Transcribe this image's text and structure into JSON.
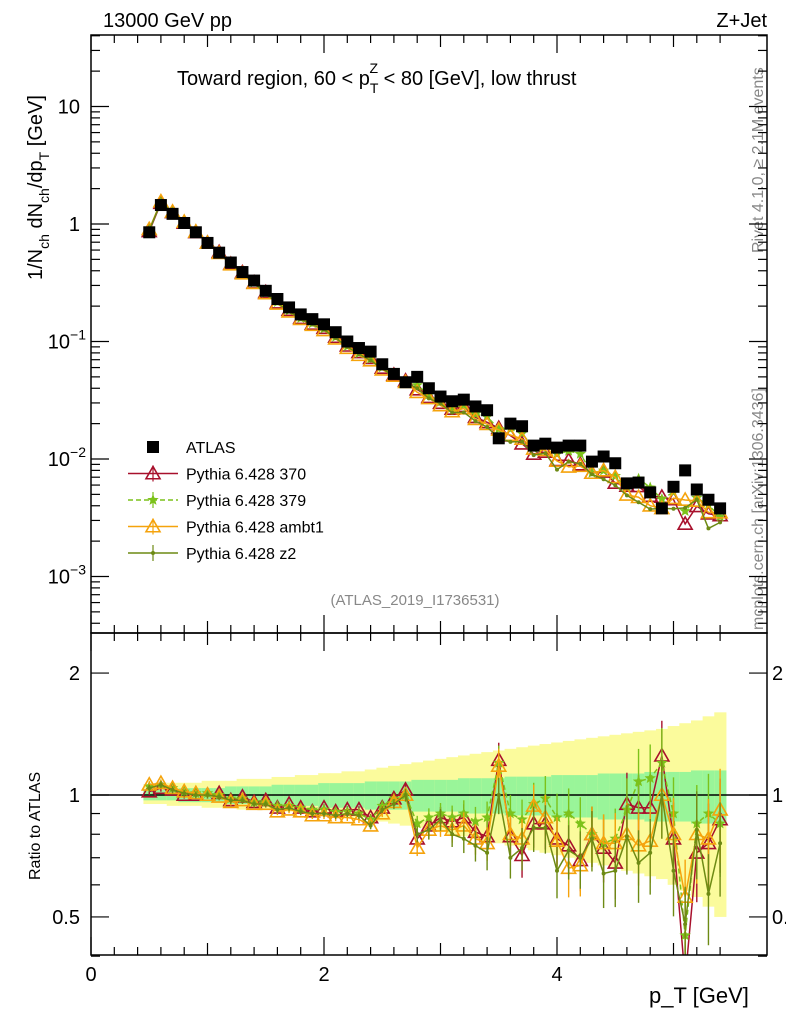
{
  "header": {
    "left": "13000 GeV pp",
    "right": "Z+Jet"
  },
  "side_texts": {
    "rivet": "Rivet 4.1.0, ≥ 2.1M events",
    "mcplots": "mcplots.cern.ch [arXiv:1306.3436]"
  },
  "watermark": "(ATLAS_2019_I1736531)",
  "chart_data": [
    {
      "type": "scatter",
      "panel": "main",
      "title": "Toward region, 60 < p_T^Z < 80 [GeV], low thrust",
      "title_parts": {
        "a": "Toward region, 60 < p",
        "sub": "T",
        "sup": "Z",
        "b": " < 80 [GeV], low thrust"
      },
      "ylabel": "1/N_ch dN_ch/dp_T [GeV]",
      "ylabel_parts": {
        "a": "1/N",
        "s1": "ch",
        "b": " dN",
        "s2": "ch",
        "c": "/dp",
        "s3": "T",
        "d": " [GeV]"
      },
      "yscale": "log",
      "ylim": [
        0.00034,
        40
      ],
      "xlim": [
        0,
        5.55
      ],
      "y_ticks": [
        {
          "v": 10,
          "base": "10",
          "exp": ""
        },
        {
          "v": 1,
          "base": "1",
          "exp": ""
        },
        {
          "v": 0.1,
          "base": "10",
          "exp": "−1"
        },
        {
          "v": 0.01,
          "base": "10",
          "exp": "−2"
        },
        {
          "v": 0.001,
          "base": "10",
          "exp": "−3"
        }
      ],
      "legend_position": "bottom-left",
      "x": [
        0.5,
        0.6,
        0.7,
        0.8,
        0.9,
        1.0,
        1.1,
        1.2,
        1.3,
        1.4,
        1.5,
        1.6,
        1.7,
        1.8,
        1.9,
        2.0,
        2.1,
        2.2,
        2.3,
        2.4,
        2.5,
        2.6,
        2.7,
        2.8,
        2.9,
        3.0,
        3.1,
        3.2,
        3.3,
        3.4,
        3.5,
        3.6,
        3.7,
        3.8,
        3.9,
        4.0,
        4.1,
        4.2,
        4.3,
        4.4,
        4.5,
        4.6,
        4.7,
        4.8,
        4.9,
        5.0,
        5.1,
        5.2,
        5.3,
        5.4
      ],
      "atlas": [
        0.85,
        1.45,
        1.22,
        1.02,
        0.85,
        0.69,
        0.57,
        0.47,
        0.39,
        0.33,
        0.27,
        0.23,
        0.195,
        0.17,
        0.155,
        0.14,
        0.12,
        0.1,
        0.088,
        0.082,
        0.064,
        0.053,
        0.045,
        0.05,
        0.04,
        0.034,
        0.031,
        0.032,
        0.028,
        0.026,
        0.015,
        0.02,
        0.019,
        0.013,
        0.0135,
        0.0125,
        0.013,
        0.013,
        0.0095,
        0.0105,
        0.0092,
        0.0062,
        0.0063,
        0.0052,
        0.0038,
        0.0058,
        0.008,
        0.0055,
        0.0045,
        0.0038
      ]
    },
    {
      "type": "line",
      "panel": "ratio",
      "ylabel": "Ratio to ATLAS",
      "xlabel_parts": {
        "a": "p",
        "sub": "T",
        "b": " [GeV]"
      },
      "xlabel": "p_T [GeV]",
      "yscale": "log",
      "ylim": [
        0.4,
        2.5
      ],
      "y_ticks": [
        {
          "v": 0.5,
          "label": "0.5"
        },
        {
          "v": 1,
          "label": "1"
        },
        {
          "v": 2,
          "label": "2"
        }
      ],
      "x_ticks": [
        {
          "v": 0,
          "label": "0"
        },
        {
          "v": 2,
          "label": "2"
        },
        {
          "v": 4,
          "label": "4"
        }
      ],
      "band_stat": [
        0.03,
        0.03,
        0.03,
        0.04,
        0.04,
        0.04,
        0.04,
        0.05,
        0.05,
        0.05,
        0.05,
        0.06,
        0.06,
        0.06,
        0.06,
        0.07,
        0.07,
        0.07,
        0.07,
        0.08,
        0.08,
        0.08,
        0.08,
        0.09,
        0.09,
        0.09,
        0.09,
        0.1,
        0.1,
        0.1,
        0.1,
        0.11,
        0.11,
        0.11,
        0.11,
        0.12,
        0.12,
        0.12,
        0.12,
        0.13,
        0.13,
        0.13,
        0.13,
        0.14,
        0.14,
        0.14,
        0.14,
        0.15,
        0.15,
        0.15
      ],
      "band_total": [
        0.05,
        0.05,
        0.06,
        0.06,
        0.06,
        0.07,
        0.07,
        0.07,
        0.08,
        0.08,
        0.08,
        0.09,
        0.09,
        0.1,
        0.1,
        0.11,
        0.11,
        0.12,
        0.12,
        0.13,
        0.14,
        0.15,
        0.16,
        0.17,
        0.18,
        0.19,
        0.2,
        0.21,
        0.22,
        0.23,
        0.24,
        0.25,
        0.26,
        0.27,
        0.28,
        0.29,
        0.3,
        0.31,
        0.32,
        0.33,
        0.34,
        0.35,
        0.36,
        0.37,
        0.38,
        0.4,
        0.42,
        0.44,
        0.47,
        0.5
      ],
      "series": [
        {
          "name": "ATLAS",
          "color": "#000000",
          "marker": "square"
        },
        {
          "name": "Pythia 6.428 370",
          "color": "#a8102c",
          "marker": "triangle-open",
          "dash": false,
          "ratio": [
            1.02,
            1.04,
            1.03,
            1.0,
            1.0,
            1.0,
            1.01,
            0.97,
            0.99,
            0.96,
            0.97,
            0.93,
            0.95,
            0.93,
            0.91,
            0.93,
            0.91,
            0.92,
            0.92,
            0.88,
            0.93,
            0.98,
            1.03,
            0.78,
            0.84,
            0.88,
            0.86,
            0.88,
            0.81,
            0.79,
            1.22,
            0.79,
            0.71,
            0.85,
            0.85,
            0.78,
            0.75,
            0.69,
            0.8,
            0.74,
            0.68,
            0.95,
            0.93,
            0.93,
            1.25,
            0.78,
            0.35,
            0.72,
            0.76,
            0.87
          ]
        },
        {
          "name": "Pythia 6.428 379",
          "color": "#7cc21a",
          "marker": "star",
          "dash": true,
          "ratio": [
            1.05,
            1.06,
            1.04,
            1.02,
            1.01,
            1.01,
            1.0,
            0.98,
            0.98,
            0.96,
            0.96,
            0.94,
            0.94,
            0.93,
            0.92,
            0.92,
            0.91,
            0.91,
            0.9,
            0.87,
            0.94,
            0.98,
            1.0,
            0.85,
            0.88,
            0.9,
            0.88,
            0.9,
            0.86,
            0.88,
            1.2,
            0.9,
            0.87,
            0.95,
            0.98,
            0.88,
            0.9,
            0.85,
            0.8,
            0.76,
            0.78,
            0.92,
            1.08,
            1.1,
            1.2,
            0.9,
            0.45,
            0.85,
            0.9,
            0.85
          ]
        },
        {
          "name": "Pythia 6.428 ambt1",
          "color": "#f5a30c",
          "marker": "triangle-open",
          "dash": false,
          "ratio": [
            1.06,
            1.07,
            1.04,
            1.02,
            1.01,
            1.0,
            0.99,
            0.96,
            0.97,
            0.95,
            0.95,
            0.91,
            0.92,
            0.91,
            0.89,
            0.89,
            0.88,
            0.88,
            0.87,
            0.84,
            0.9,
            0.96,
            1.0,
            0.74,
            0.82,
            0.84,
            0.82,
            0.84,
            0.78,
            0.76,
            1.18,
            0.8,
            0.78,
            0.94,
            0.88,
            0.77,
            0.66,
            0.67,
            0.8,
            0.76,
            0.76,
            0.8,
            0.75,
            0.77,
            1.0,
            0.8,
            0.56,
            0.8,
            0.78,
            0.92
          ]
        },
        {
          "name": "Pythia 6.428 z2",
          "color": "#6d8a14",
          "marker": "dot",
          "dash": false,
          "ratio": [
            1.04,
            1.06,
            1.03,
            1.01,
            1.0,
            1.0,
            0.99,
            0.97,
            0.97,
            0.95,
            0.95,
            0.92,
            0.93,
            0.91,
            0.9,
            0.9,
            0.89,
            0.9,
            0.89,
            0.84,
            0.92,
            0.95,
            1.0,
            0.8,
            0.82,
            0.87,
            0.8,
            0.78,
            0.75,
            0.72,
            1.0,
            0.7,
            0.74,
            0.83,
            0.83,
            0.65,
            0.73,
            0.7,
            0.78,
            0.64,
            0.65,
            0.79,
            0.68,
            0.72,
            1.0,
            0.65,
            0.48,
            0.82,
            0.57,
            0.76
          ]
        }
      ],
      "colors": {
        "band_stat": "#99f599",
        "band_total": "#fbfb9c"
      }
    }
  ]
}
